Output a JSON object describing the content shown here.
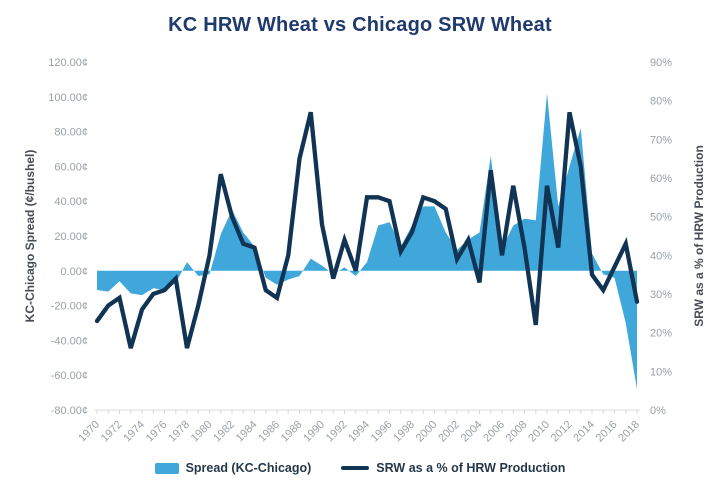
{
  "title": "KC HRW Wheat vs Chicago SRW Wheat",
  "colors": {
    "area": "#3fa7da",
    "line": "#123454",
    "title_text": "#1f3a6d",
    "tick_label": "#9aa0a8",
    "axis_title_text": "#454c56",
    "legend_text": "#25384a",
    "axis_line": "#d7dade"
  },
  "legend": {
    "area_label": "Spread (KC-Chicago)",
    "line_label": "SRW as a % of HRW Production"
  },
  "chart_data": {
    "type": "combo (area + line, dual axis)",
    "grid": "off",
    "legend_position": "bottom-center",
    "title": "KC HRW Wheat vs Chicago SRW Wheat",
    "x": [
      1970,
      1971,
      1972,
      1973,
      1974,
      1975,
      1976,
      1977,
      1978,
      1979,
      1980,
      1981,
      1982,
      1983,
      1984,
      1985,
      1986,
      1987,
      1988,
      1989,
      1990,
      1991,
      1992,
      1993,
      1994,
      1995,
      1996,
      1997,
      1998,
      1999,
      2000,
      2001,
      2002,
      2003,
      2004,
      2005,
      2006,
      2007,
      2008,
      2009,
      2010,
      2011,
      2012,
      2013,
      2014,
      2015,
      2016,
      2017,
      2018
    ],
    "series": [
      {
        "name": "Spread (KC-Chicago)",
        "type": "area",
        "axis": "left",
        "units": "cents/bushel",
        "values": [
          -11,
          -12,
          -6,
          -13,
          -14,
          -10,
          -11,
          -7,
          5,
          -3,
          -2,
          21,
          35,
          22,
          14,
          -4,
          -8,
          -5,
          -3,
          7,
          3,
          -2,
          2,
          -3,
          5,
          26,
          28,
          14,
          26,
          37,
          37,
          22,
          12,
          18,
          22,
          66,
          13,
          26,
          30,
          29,
          102,
          37,
          60,
          82,
          10,
          -2,
          -4,
          -30,
          -68
        ]
      },
      {
        "name": "SRW as a % of HRW Production",
        "type": "line",
        "axis": "right",
        "units": "percent",
        "values": [
          23,
          27,
          29,
          16,
          26,
          30,
          31,
          34,
          16,
          27,
          40,
          61,
          50,
          43,
          42,
          31,
          29,
          40,
          65,
          77,
          48,
          34,
          44,
          36,
          55,
          55,
          54,
          41,
          46,
          55,
          54,
          52,
          39,
          44,
          33,
          62,
          40,
          58,
          42,
          22,
          58,
          42,
          77,
          63,
          35,
          31,
          37,
          43,
          28
        ]
      }
    ],
    "left_axis": {
      "label": "KC-Chicago Spread (¢/bushel)",
      "min": -80,
      "max": 120,
      "ticks": [
        {
          "value": 120,
          "label": "120.00¢"
        },
        {
          "value": 100,
          "label": "100.00¢"
        },
        {
          "value": 80,
          "label": "80.00¢"
        },
        {
          "value": 60,
          "label": "60.00¢"
        },
        {
          "value": 40,
          "label": "40.00¢"
        },
        {
          "value": 20,
          "label": "20.00¢"
        },
        {
          "value": 0,
          "label": "0.00¢"
        },
        {
          "value": -20,
          "label": "-20.00¢"
        },
        {
          "value": -40,
          "label": "-40.00¢"
        },
        {
          "value": -60,
          "label": "-60.00¢"
        },
        {
          "value": -80,
          "label": "-80.00¢"
        }
      ]
    },
    "right_axis": {
      "label": "SRW as a % of HRW Production",
      "min": 0,
      "max": 90,
      "ticks": [
        {
          "value": 90,
          "label": "90%"
        },
        {
          "value": 80,
          "label": "80%"
        },
        {
          "value": 70,
          "label": "70%"
        },
        {
          "value": 60,
          "label": "60%"
        },
        {
          "value": 50,
          "label": "50%"
        },
        {
          "value": 40,
          "label": "40%"
        },
        {
          "value": 30,
          "label": "30%"
        },
        {
          "value": 20,
          "label": "20%"
        },
        {
          "value": 10,
          "label": "10%"
        },
        {
          "value": 0,
          "label": "0%"
        }
      ]
    },
    "x_axis": {
      "min": 1970,
      "max": 2018,
      "minor_tick_every": 1,
      "tick_labels": [
        {
          "value": 1970,
          "label": "1970"
        },
        {
          "value": 1972,
          "label": "1972"
        },
        {
          "value": 1974,
          "label": "1974"
        },
        {
          "value": 1976,
          "label": "1976"
        },
        {
          "value": 1978,
          "label": "1978"
        },
        {
          "value": 1980,
          "label": "1980"
        },
        {
          "value": 1982,
          "label": "1982"
        },
        {
          "value": 1984,
          "label": "1984"
        },
        {
          "value": 1986,
          "label": "1986"
        },
        {
          "value": 1988,
          "label": "1988"
        },
        {
          "value": 1990,
          "label": "1990"
        },
        {
          "value": 1992,
          "label": "1992"
        },
        {
          "value": 1994,
          "label": "1994"
        },
        {
          "value": 1996,
          "label": "1996"
        },
        {
          "value": 1998,
          "label": "1998"
        },
        {
          "value": 2000,
          "label": "2000"
        },
        {
          "value": 2002,
          "label": "2002"
        },
        {
          "value": 2004,
          "label": "2004"
        },
        {
          "value": 2006,
          "label": "2006"
        },
        {
          "value": 2008,
          "label": "2008"
        },
        {
          "value": 2010,
          "label": "2010"
        },
        {
          "value": 2012,
          "label": "2012"
        },
        {
          "value": 2014,
          "label": "2014"
        },
        {
          "value": 2016,
          "label": "2016"
        },
        {
          "value": 2018,
          "label": "2018"
        }
      ]
    }
  }
}
